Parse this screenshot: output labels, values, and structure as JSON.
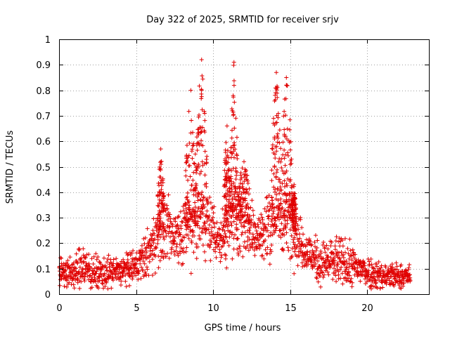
{
  "chart_data": {
    "type": "scatter",
    "title": "Day 322 of 2025, SRMTID for receiver srjv",
    "xlabel": "GPS time / hours",
    "ylabel": "SRMTID / TECUs",
    "xlim": [
      0,
      24
    ],
    "ylim": [
      0,
      1
    ],
    "xticks": [
      "0",
      "5",
      "10",
      "15",
      "20"
    ],
    "xtick_values": [
      0,
      5,
      10,
      15,
      20
    ],
    "yticks": [
      "0",
      "0.1",
      "0.2",
      "0.3",
      "0.4",
      "0.5",
      "0.6",
      "0.7",
      "0.8",
      "0.9",
      "1"
    ],
    "ytick_values": [
      0,
      0.1,
      0.2,
      0.3,
      0.4,
      0.5,
      0.6,
      0.7,
      0.8,
      0.9,
      1.0
    ],
    "grid": true,
    "marker": "plus",
    "color": "#e00000",
    "x_range_of_data": [
      0,
      22.8
    ],
    "profile": [
      {
        "x": 0.0,
        "y": 0.09,
        "spread": 0.03
      },
      {
        "x": 1.0,
        "y": 0.08,
        "spread": 0.03
      },
      {
        "x": 1.5,
        "y": 0.11,
        "spread": 0.05
      },
      {
        "x": 2.5,
        "y": 0.08,
        "spread": 0.03
      },
      {
        "x": 4.0,
        "y": 0.09,
        "spread": 0.03
      },
      {
        "x": 5.0,
        "y": 0.11,
        "spread": 0.03
      },
      {
        "x": 5.5,
        "y": 0.14,
        "spread": 0.04
      },
      {
        "x": 6.0,
        "y": 0.18,
        "spread": 0.05
      },
      {
        "x": 6.5,
        "y": 0.25,
        "spread": 0.07
      },
      {
        "x": 7.5,
        "y": 0.23,
        "spread": 0.05
      },
      {
        "x": 8.5,
        "y": 0.27,
        "spread": 0.07
      },
      {
        "x": 9.2,
        "y": 0.3,
        "spread": 0.08
      },
      {
        "x": 10.0,
        "y": 0.26,
        "spread": 0.06
      },
      {
        "x": 10.5,
        "y": 0.2,
        "spread": 0.05
      },
      {
        "x": 11.2,
        "y": 0.3,
        "spread": 0.08
      },
      {
        "x": 12.0,
        "y": 0.3,
        "spread": 0.07
      },
      {
        "x": 13.0,
        "y": 0.22,
        "spread": 0.06
      },
      {
        "x": 14.0,
        "y": 0.3,
        "spread": 0.07
      },
      {
        "x": 15.0,
        "y": 0.3,
        "spread": 0.07
      },
      {
        "x": 15.5,
        "y": 0.22,
        "spread": 0.05
      },
      {
        "x": 16.0,
        "y": 0.17,
        "spread": 0.04
      },
      {
        "x": 17.0,
        "y": 0.12,
        "spread": 0.04
      },
      {
        "x": 18.0,
        "y": 0.13,
        "spread": 0.05
      },
      {
        "x": 19.0,
        "y": 0.11,
        "spread": 0.04
      },
      {
        "x": 20.0,
        "y": 0.09,
        "spread": 0.03
      },
      {
        "x": 21.0,
        "y": 0.07,
        "spread": 0.03
      },
      {
        "x": 22.8,
        "y": 0.07,
        "spread": 0.02
      }
    ],
    "peaks": [
      {
        "x": [
          6.4,
          6.8
        ],
        "ymax": 0.57
      },
      {
        "x": [
          8.2,
          8.9
        ],
        "ymax": 0.8
      },
      {
        "x": [
          8.9,
          9.6
        ],
        "ymax": 0.92
      },
      {
        "x": [
          10.7,
          11.1
        ],
        "ymax": 0.66
      },
      {
        "x": [
          11.1,
          11.6
        ],
        "ymax": 0.91
      },
      {
        "x": [
          11.6,
          12.4
        ],
        "ymax": 0.52
      },
      {
        "x": [
          13.8,
          14.4
        ],
        "ymax": 0.87
      },
      {
        "x": [
          14.4,
          15.1
        ],
        "ymax": 0.85
      },
      {
        "x": [
          15.1,
          15.4
        ],
        "ymax": 0.43
      }
    ]
  }
}
